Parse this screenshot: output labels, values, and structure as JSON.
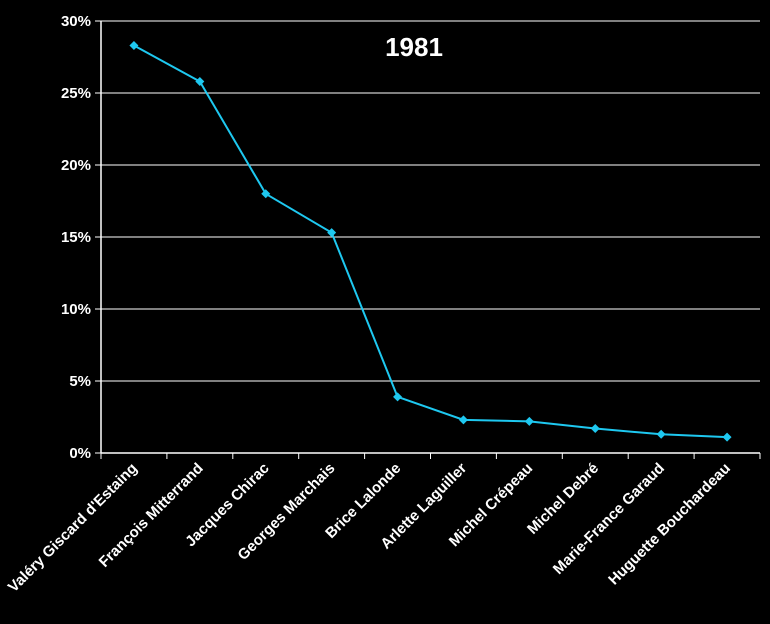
{
  "chart_data": {
    "type": "line",
    "title": "1981",
    "xlabel": "",
    "ylabel": "",
    "categories": [
      "Valéry Giscard d'Estaing",
      "François Mitterrand",
      "Jacques Chirac",
      "Georges Marchais",
      "Brice Lalonde",
      "Arlette Laguiller",
      "Michel Crépeau",
      "Michel Debré",
      "Marie-France Garaud",
      "Huguette Bouchardeau"
    ],
    "series": [
      {
        "values": [
          28.3,
          25.8,
          18.0,
          15.3,
          3.9,
          2.3,
          2.2,
          1.7,
          1.3,
          1.1
        ],
        "color": "#1ec8f0"
      }
    ],
    "ylim": [
      0,
      30
    ],
    "yticks": [
      0,
      5,
      10,
      15,
      20,
      25,
      30
    ],
    "ytick_labels": [
      "0%",
      "5%",
      "10%",
      "15%",
      "20%",
      "25%",
      "30%"
    ],
    "grid": true,
    "legend": "none",
    "colors": {
      "background": "#000000",
      "axis": "#ffffff",
      "grid": "#ffffff",
      "line": "#1ec8f0",
      "text": "#ffffff"
    }
  }
}
